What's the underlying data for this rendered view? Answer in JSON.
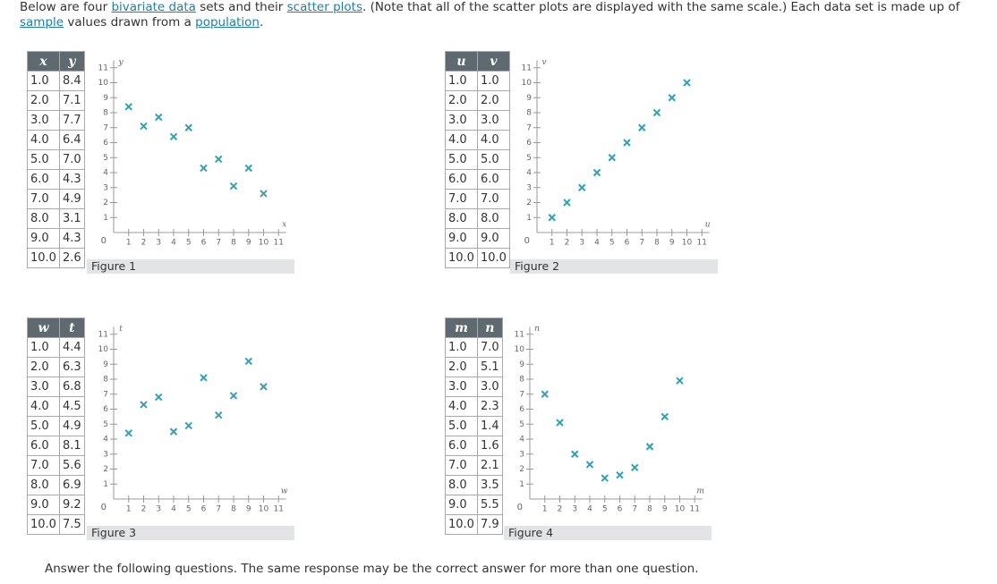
{
  "intro": [
    {
      "text": "Below are four ",
      "link": false
    },
    {
      "text": "bivariate data",
      "link": true
    },
    {
      "text": " sets and their ",
      "link": false
    },
    {
      "text": "scatter plots",
      "link": true
    },
    {
      "text": ". (Note that all of the scatter plots are displayed with the same scale.) Each data set is made up of ",
      "link": false
    },
    {
      "text": "sample",
      "link": true
    },
    {
      "text": " values drawn from a ",
      "link": false
    },
    {
      "text": "population",
      "link": true
    },
    {
      "text": ".",
      "link": false
    }
  ],
  "axes": {
    "xlim": [
      0,
      11.5
    ],
    "ylim": [
      0,
      11.5
    ],
    "ticks": [
      1,
      2,
      3,
      4,
      5,
      6,
      7,
      8,
      9,
      10,
      11
    ],
    "origin": 0,
    "mark_color": "#2ea3b6"
  },
  "figures": [
    {
      "caption": "Figure 1",
      "columns": [
        "x",
        "y"
      ],
      "rows": [
        [
          "1.0",
          "8.4"
        ],
        [
          "2.0",
          "7.1"
        ],
        [
          "3.0",
          "7.7"
        ],
        [
          "4.0",
          "6.4"
        ],
        [
          "5.0",
          "7.0"
        ],
        [
          "6.0",
          "4.3"
        ],
        [
          "7.0",
          "4.9"
        ],
        [
          "8.0",
          "3.1"
        ],
        [
          "9.0",
          "4.3"
        ],
        [
          "10.0",
          "2.6"
        ]
      ]
    },
    {
      "caption": "Figure 2",
      "columns": [
        "u",
        "v"
      ],
      "rows": [
        [
          "1.0",
          "1.0"
        ],
        [
          "2.0",
          "2.0"
        ],
        [
          "3.0",
          "3.0"
        ],
        [
          "4.0",
          "4.0"
        ],
        [
          "5.0",
          "5.0"
        ],
        [
          "6.0",
          "6.0"
        ],
        [
          "7.0",
          "7.0"
        ],
        [
          "8.0",
          "8.0"
        ],
        [
          "9.0",
          "9.0"
        ],
        [
          "10.0",
          "10.0"
        ]
      ]
    },
    {
      "caption": "Figure 3",
      "columns": [
        "w",
        "t"
      ],
      "rows": [
        [
          "1.0",
          "4.4"
        ],
        [
          "2.0",
          "6.3"
        ],
        [
          "3.0",
          "6.8"
        ],
        [
          "4.0",
          "4.5"
        ],
        [
          "5.0",
          "4.9"
        ],
        [
          "6.0",
          "8.1"
        ],
        [
          "7.0",
          "5.6"
        ],
        [
          "8.0",
          "6.9"
        ],
        [
          "9.0",
          "9.2"
        ],
        [
          "10.0",
          "7.5"
        ]
      ]
    },
    {
      "caption": "Figure 4",
      "columns": [
        "m",
        "n"
      ],
      "rows": [
        [
          "1.0",
          "7.0"
        ],
        [
          "2.0",
          "5.1"
        ],
        [
          "3.0",
          "3.0"
        ],
        [
          "4.0",
          "2.3"
        ],
        [
          "5.0",
          "1.4"
        ],
        [
          "6.0",
          "1.6"
        ],
        [
          "7.0",
          "2.1"
        ],
        [
          "8.0",
          "3.5"
        ],
        [
          "9.0",
          "5.5"
        ],
        [
          "10.0",
          "7.9"
        ]
      ]
    }
  ],
  "closing": "Answer the following questions. The same response may be the correct answer for more than one question."
}
